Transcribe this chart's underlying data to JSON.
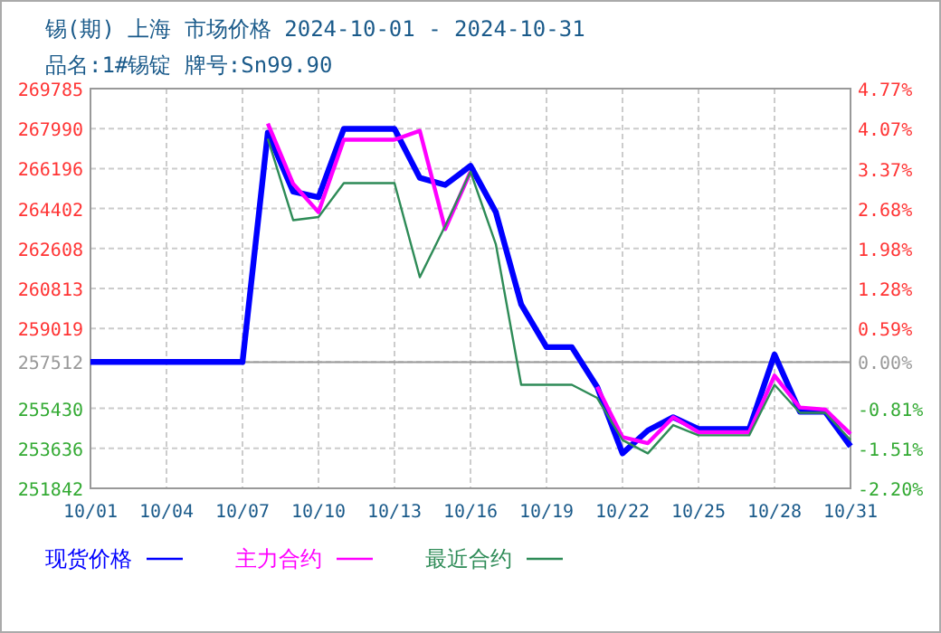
{
  "chart_data": {
    "type": "line",
    "title": "锡(期) 上海 市场价格 2024-10-01 - 2024-10-31",
    "subtitle": "品名:1#锡锭 牌号:Sn99.90",
    "x": [
      "2024-10-01",
      "2024-10-02",
      "2024-10-03",
      "2024-10-04",
      "2024-10-05",
      "2024-10-06",
      "2024-10-07",
      "2024-10-08",
      "2024-10-09",
      "2024-10-10",
      "2024-10-11",
      "2024-10-12",
      "2024-10-13",
      "2024-10-14",
      "2024-10-15",
      "2024-10-16",
      "2024-10-17",
      "2024-10-18",
      "2024-10-19",
      "2024-10-20",
      "2024-10-21",
      "2024-10-22",
      "2024-10-23",
      "2024-10-24",
      "2024-10-25",
      "2024-10-26",
      "2024-10-27",
      "2024-10-28",
      "2024-10-29",
      "2024-10-30",
      "2024-10-31"
    ],
    "series": [
      {
        "name": "现货价格",
        "color": "#0000ff",
        "values": [
          257512,
          257512,
          257512,
          257512,
          257512,
          257512,
          257512,
          267810,
          265160,
          264910,
          267980,
          267980,
          267980,
          265780,
          265460,
          266320,
          264240,
          260100,
          258180,
          258180,
          256390,
          253410,
          254440,
          255030,
          254500,
          254500,
          254500,
          257850,
          255280,
          255280,
          253730
        ]
      },
      {
        "name": "主力合约",
        "color": "#ff00ff",
        "values": [
          null,
          null,
          null,
          null,
          null,
          null,
          null,
          268220,
          265510,
          264240,
          267490,
          267490,
          267490,
          267890,
          263480,
          266050,
          null,
          null,
          null,
          null,
          256400,
          254140,
          253870,
          255030,
          254360,
          254360,
          254360,
          256900,
          255470,
          255380,
          254280
        ]
      },
      {
        "name": "最近合约",
        "color": "#2e8b57",
        "values": [
          null,
          null,
          null,
          null,
          null,
          null,
          null,
          267540,
          263880,
          264020,
          265540,
          265540,
          265540,
          261320,
          263620,
          266050,
          262800,
          256490,
          256490,
          256490,
          255900,
          254010,
          253410,
          254680,
          254220,
          254220,
          254220,
          256490,
          255230,
          255230,
          254010
        ]
      }
    ],
    "xlim": [
      "2024-10-01",
      "2024-10-31"
    ],
    "xticks": [
      {
        "value": "2024-10-01",
        "label": "10/01"
      },
      {
        "value": "2024-10-04",
        "label": "10/04"
      },
      {
        "value": "2024-10-07",
        "label": "10/07"
      },
      {
        "value": "2024-10-10",
        "label": "10/10"
      },
      {
        "value": "2024-10-13",
        "label": "10/13"
      },
      {
        "value": "2024-10-16",
        "label": "10/16"
      },
      {
        "value": "2024-10-19",
        "label": "10/19"
      },
      {
        "value": "2024-10-22",
        "label": "10/22"
      },
      {
        "value": "2024-10-25",
        "label": "10/25"
      },
      {
        "value": "2024-10-28",
        "label": "10/28"
      },
      {
        "value": "2024-10-31",
        "label": "10/31"
      }
    ],
    "ylim": [
      251842,
      269785
    ],
    "yticks": [
      251842,
      253636,
      255430,
      257512,
      259019,
      260813,
      262608,
      264402,
      266196,
      267990,
      269785
    ],
    "y2lim": [
      -2.2,
      4.77
    ],
    "y2ticks": [
      {
        "value": -2.2,
        "label": "-2.20%"
      },
      {
        "value": -1.51,
        "label": "-1.51%"
      },
      {
        "value": -0.81,
        "label": "-0.81%"
      },
      {
        "value": 0,
        "label": "0.00%"
      },
      {
        "value": 0.59,
        "label": "0.59%"
      },
      {
        "value": 1.28,
        "label": "1.28%"
      },
      {
        "value": 1.98,
        "label": "1.98%"
      },
      {
        "value": 2.68,
        "label": "2.68%"
      },
      {
        "value": 3.37,
        "label": "3.37%"
      },
      {
        "value": 4.07,
        "label": "4.07%"
      },
      {
        "value": 4.77,
        "label": "4.77%"
      }
    ],
    "ref_lines": [
      {
        "axis": "y2",
        "value": 0,
        "color": "#999999",
        "line_style": "solid"
      }
    ],
    "grid": true,
    "legend": "bottom"
  }
}
